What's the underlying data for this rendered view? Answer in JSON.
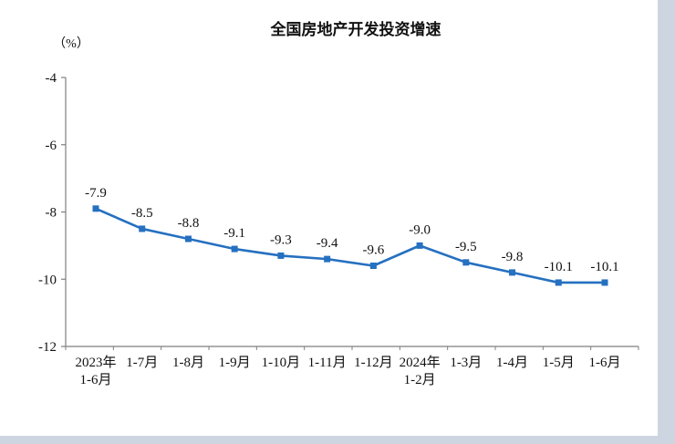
{
  "page": {
    "background": "#ffffff",
    "frame_color": "#cdd5e0"
  },
  "chart_data": {
    "type": "line",
    "title": "全国房地产开发投资增速",
    "unit_label": "（%）",
    "categories": [
      "2023年\n1-6月",
      "1-7月",
      "1-8月",
      "1-9月",
      "1-10月",
      "1-11月",
      "1-12月",
      "2024年\n1-2月",
      "1-3月",
      "1-4月",
      "1-5月",
      "1-6月"
    ],
    "values": [
      -7.9,
      -8.5,
      -8.8,
      -9.1,
      -9.3,
      -9.4,
      -9.6,
      -9.0,
      -9.5,
      -9.8,
      -10.1,
      -10.1
    ],
    "data_labels": [
      "-7.9",
      "-8.5",
      "-8.8",
      "-9.1",
      "-9.3",
      "-9.4",
      "-9.6",
      "-9.0",
      "-9.5",
      "-9.8",
      "-10.1",
      "-10.1"
    ],
    "ylim": [
      -12,
      -4
    ],
    "yticks": [
      -4,
      -6,
      -8,
      -10,
      -12
    ],
    "line_color": "#2570C0",
    "marker": "square",
    "grid": false,
    "legend": "none",
    "axis_color": "#7f7f7f"
  }
}
